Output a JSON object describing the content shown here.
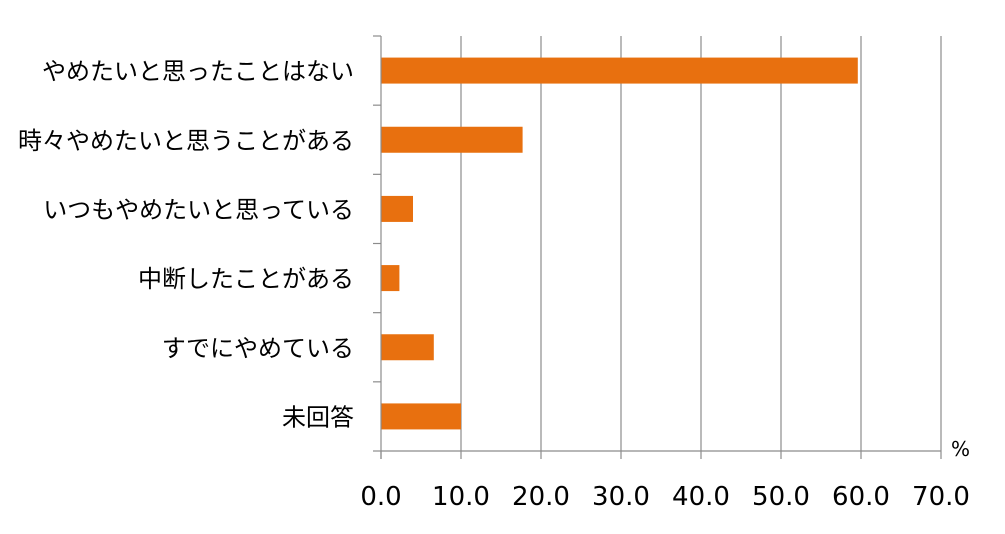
{
  "chart_data": {
    "type": "bar",
    "orientation": "horizontal",
    "categories": [
      "やめたいと思ったことはない",
      "時々やめたいと思うことがある",
      "いつもやめたいと思っている",
      "中断したことがある",
      "すでにやめている",
      "未回答"
    ],
    "values": [
      59.6,
      17.7,
      4.0,
      2.3,
      6.6,
      10.0
    ],
    "x_unit": "%",
    "xlim": [
      0,
      70
    ],
    "x_ticks": [
      "0.0",
      "10.0",
      "20.0",
      "30.0",
      "40.0",
      "50.0",
      "60.0",
      "70.0"
    ],
    "grid": "vertical",
    "bar_color": "#E8700F"
  }
}
